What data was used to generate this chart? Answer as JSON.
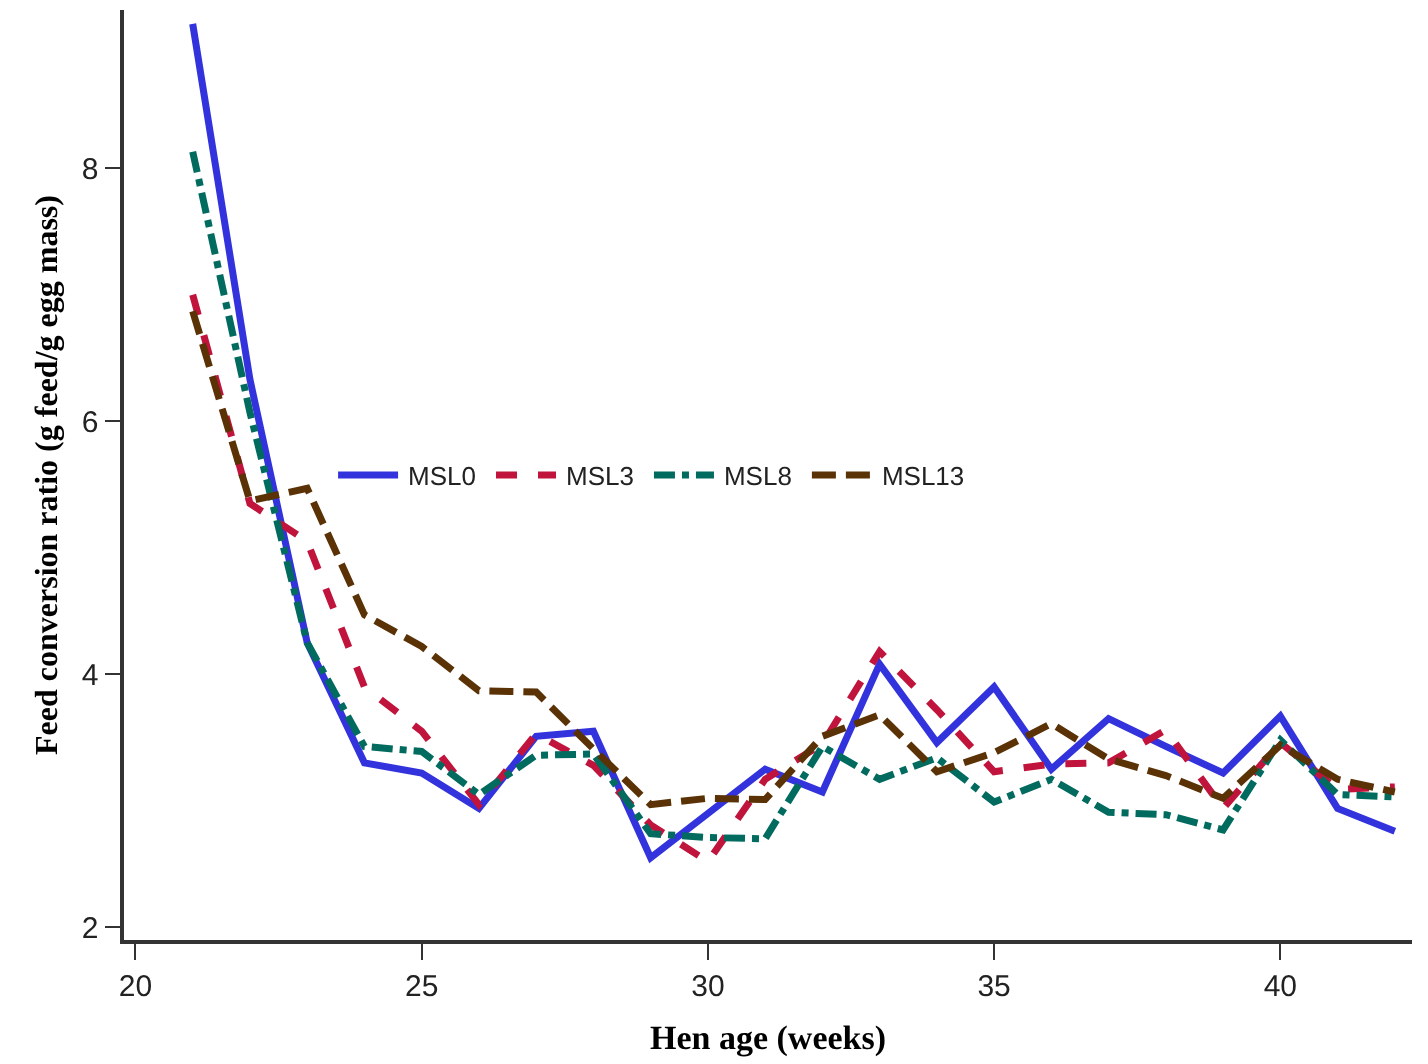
{
  "chart_data": {
    "type": "line",
    "xlabel": "Hen age (weeks)",
    "ylabel": "Feed conversion ratio (g feed/g egg mass)",
    "x": [
      21,
      22,
      23,
      24,
      25,
      26,
      27,
      28,
      29,
      30,
      31,
      32,
      33,
      34,
      35,
      36,
      37,
      38,
      39,
      40,
      41,
      42
    ],
    "series": [
      {
        "name": "MSL0",
        "color": "#3333dd",
        "line_style": "solid",
        "values": [
          9.14,
          6.33,
          4.25,
          3.3,
          3.22,
          2.94,
          3.51,
          3.55,
          2.55,
          2.9,
          3.25,
          3.07,
          4.08,
          3.46,
          3.9,
          3.25,
          3.65,
          3.43,
          3.22,
          3.67,
          2.94,
          2.76
        ]
      },
      {
        "name": "MSL3",
        "color": "#c0143c",
        "line_style": "dashed",
        "values": [
          7.0,
          5.35,
          5.05,
          3.9,
          3.55,
          2.97,
          3.53,
          3.28,
          2.81,
          2.52,
          3.17,
          3.45,
          4.18,
          3.72,
          3.23,
          3.29,
          3.3,
          3.56,
          2.94,
          3.46,
          3.09,
          3.11
        ]
      },
      {
        "name": "MSL8",
        "color": "#006b5e",
        "line_style": "dashdot",
        "values": [
          8.13,
          6.07,
          4.25,
          3.43,
          3.39,
          3.05,
          3.36,
          3.37,
          2.74,
          2.71,
          2.7,
          3.43,
          3.17,
          3.34,
          2.99,
          3.17,
          2.91,
          2.89,
          2.77,
          3.48,
          3.05,
          3.03
        ]
      },
      {
        "name": "MSL13",
        "color": "#5a3206",
        "line_style": "longdash",
        "values": [
          6.87,
          5.37,
          5.47,
          4.47,
          4.22,
          3.87,
          3.86,
          3.41,
          2.97,
          3.02,
          3.01,
          3.51,
          3.68,
          3.23,
          3.38,
          3.61,
          3.33,
          3.2,
          3.02,
          3.44,
          3.17,
          3.07
        ]
      }
    ],
    "xlim": [
      19.8,
      42.3
    ],
    "xticks": [
      20,
      25,
      30,
      35,
      40
    ],
    "ylim": [
      1.9,
      9.25
    ],
    "yticks": [
      2,
      4,
      6,
      8
    ],
    "legend": "center",
    "marker": "none"
  }
}
